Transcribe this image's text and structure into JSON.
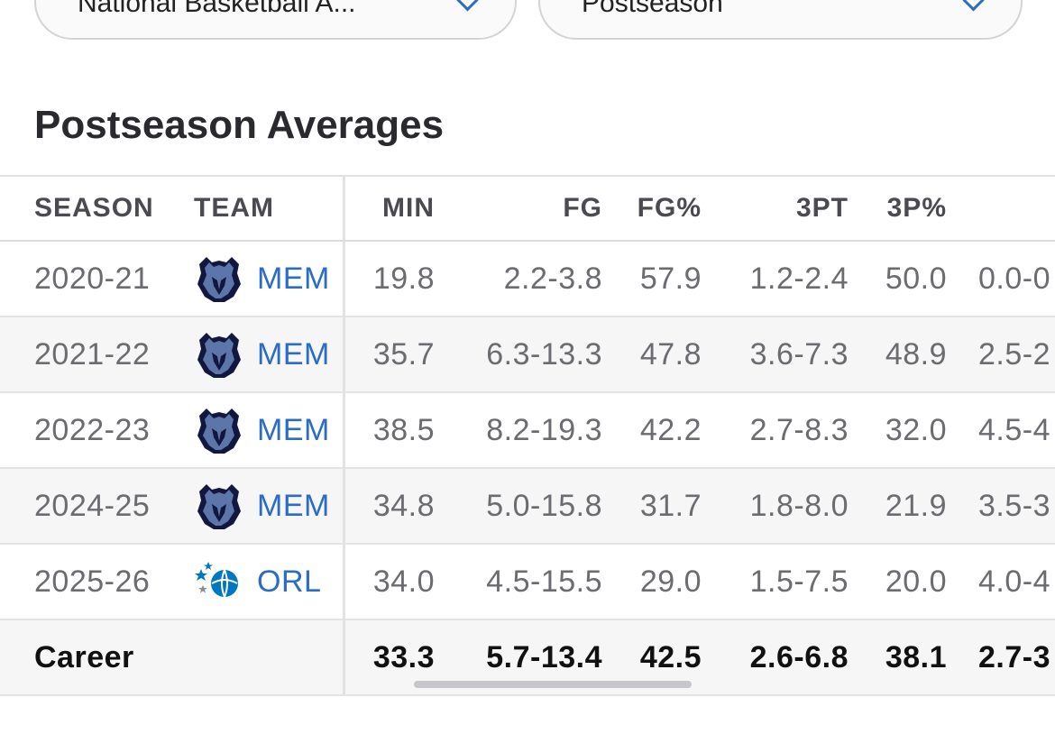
{
  "filters": {
    "league": "National Basketball A...",
    "season_type": "Postseason"
  },
  "section_title": "Postseason Averages",
  "columns": {
    "season": "SEASON",
    "team": "TEAM",
    "min": "MIN",
    "fg": "FG",
    "fgp": "FG%",
    "tpt": "3PT",
    "tpp": "3P%"
  },
  "rows": [
    {
      "season": "2020-21",
      "team": "MEM",
      "logo": "grizzlies-logo",
      "min": "19.8",
      "fg": "2.2-3.8",
      "fgp": "57.9",
      "tpt": "1.2-2.4",
      "tpp": "50.0",
      "ft": "0.0-0"
    },
    {
      "season": "2021-22",
      "team": "MEM",
      "logo": "grizzlies-logo",
      "min": "35.7",
      "fg": "6.3-13.3",
      "fgp": "47.8",
      "tpt": "3.6-7.3",
      "tpp": "48.9",
      "ft": "2.5-2"
    },
    {
      "season": "2022-23",
      "team": "MEM",
      "logo": "grizzlies-logo",
      "min": "38.5",
      "fg": "8.2-19.3",
      "fgp": "42.2",
      "tpt": "2.7-8.3",
      "tpp": "32.0",
      "ft": "4.5-4"
    },
    {
      "season": "2024-25",
      "team": "MEM",
      "logo": "grizzlies-logo",
      "min": "34.8",
      "fg": "5.0-15.8",
      "fgp": "31.7",
      "tpt": "1.8-8.0",
      "tpp": "21.9",
      "ft": "3.5-3"
    },
    {
      "season": "2025-26",
      "team": "ORL",
      "logo": "magic-logo",
      "min": "34.0",
      "fg": "4.5-15.5",
      "fgp": "29.0",
      "tpt": "1.5-7.5",
      "tpp": "20.0",
      "ft": "4.0-4"
    }
  ],
  "career": {
    "label": "Career",
    "min": "33.3",
    "fg": "5.7-13.4",
    "fgp": "42.5",
    "tpt": "2.6-6.8",
    "tpp": "38.1",
    "ft": "2.7-3"
  },
  "colors": {
    "link": "#2b6cc4",
    "grizzlies_navy": "#12173f",
    "grizzlies_blue": "#5d76a9",
    "magic_blue": "#0077c0"
  }
}
